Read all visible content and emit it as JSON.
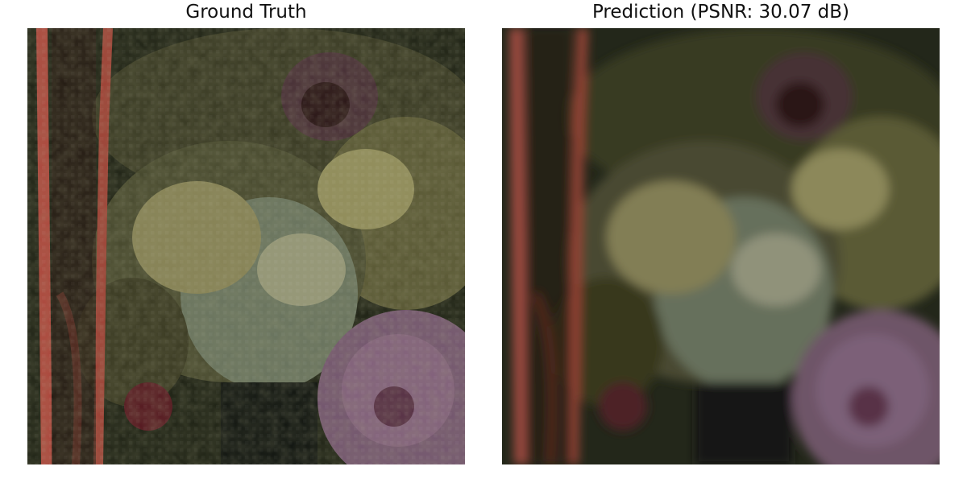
{
  "figure": {
    "left_title": "Ground Truth",
    "right_title": "Prediction (PSNR: 30.07 dB)"
  },
  "colors": {
    "background_dark": "#1e2214",
    "foliage_olive": "#5a5a36",
    "foliage_light": "#8e8a5a",
    "stem_red": "#b84a40",
    "flower_purple": "#8a6684",
    "flower_dark_red": "#5a1a22",
    "leaf_grey_green": "#6e7a64",
    "shadow": "#101410"
  },
  "left_panel": {
    "label": "ground-truth-image",
    "style": "sharp-pixelated"
  },
  "right_panel": {
    "label": "prediction-image",
    "style": "blurred"
  }
}
